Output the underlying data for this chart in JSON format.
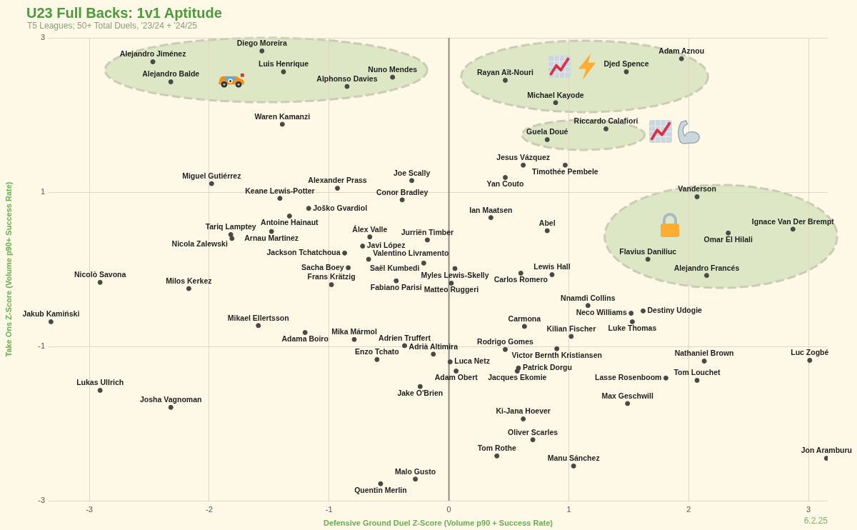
{
  "chart_data": {
    "type": "scatter",
    "title": "U23 Full Backs: 1v1 Aptitude",
    "subtitle": "T5 Leagues; 50+ Total Duels, '23/24 + '24/25",
    "xlabel": "Defensive Ground Duel Z-Score (Volume p90 + Success Rate)",
    "ylabel": "Take Ons Z-Score (Volume p90+ Success Rate)",
    "annotations": [
      "6.2.25"
    ],
    "value_labels": [
      "Alejandro Jiménez",
      "Diego Moreira",
      "Luis Henrique",
      "Alejandro Balde",
      "Nuno Mendes",
      "Alphonso Davies",
      "Adam Aznou",
      "Djed Spence",
      "Rayan Aït-Nouri",
      "Michael Kayode",
      "Waren Kamanzi",
      "Riccardo Calafiori",
      "Guela Doué",
      "Jesus Vázquez",
      "Timothée Pembele",
      "Yan Couto",
      "Joe Scally",
      "Miguel Gutiérrez",
      "Alexander Prass",
      "Vanderson",
      "Keane Lewis-Potter",
      "Conor Bradley",
      "Joško Gvardiol",
      "Antoine Hainaut",
      "Ian Maatsen",
      "Ignace Van Der Brempt",
      "Abel",
      "Arnau Martinez",
      "Omar El Hilali",
      "Nicola Zalewski",
      "Tariq Lamptey",
      "Álex Valle",
      "Jurriën Timber",
      "Javi López",
      "Jackson Tchatchoua",
      "Valentino Livramento",
      "Flavius Daniliuc",
      "Myles Lewis-Skelly",
      "Saël Kumbedi",
      "Sacha Boey",
      "Lewis Hall",
      "Carlos Romero",
      "Alejandro Francés",
      "Fabiano Parisi",
      "Nicolò Savona",
      "Matteo Ruggeri",
      "Frans Krätzig",
      "Milos Kerkez",
      "Nnamdi Collins",
      "Destiny Udogie",
      "Neco Williams",
      "Jakub Kamiński",
      "Luke Thomas",
      "Mikael Ellertsson",
      "Carmona",
      "Adama Boiro",
      "Kilian Fischer",
      "Mika Mármol",
      "Adrien Truffert",
      "Rodrigo Gomes",
      "Victor Bernth Kristiansen",
      "Adrià Altimira",
      "Enzo Tchato",
      "Luc Zogbé",
      "Nathaniel Brown",
      "Luca Netz",
      "Adam Obert",
      "Jacques Ekomie",
      "Patrick Dorgu",
      "Tom Louchet",
      "Lasse Rosenboom",
      "Jake O'Brien",
      "Lukas Ullrich",
      "Max Geschwill",
      "Josha Vagnoman",
      "Ki-Jana Hoever",
      "Oliver Scarles",
      "Tom Rothe",
      "Jon Aramburu",
      "Manu Sánchez",
      "Malo Gusto",
      "Quentin Merlin"
    ],
    "x": [
      -2.47,
      -1.56,
      -1.38,
      -2.32,
      -0.47,
      -0.85,
      1.94,
      1.48,
      0.47,
      0.89,
      -1.39,
      1.31,
      0.82,
      0.62,
      0.97,
      0.47,
      -0.31,
      -1.98,
      -0.93,
      2.07,
      -1.41,
      -0.39,
      -1.17,
      -1.33,
      0.35,
      2.87,
      0.82,
      -1.48,
      2.33,
      -1.81,
      -1.82,
      -0.66,
      -0.18,
      -0.72,
      -0.87,
      -0.67,
      1.66,
      0.05,
      -0.21,
      -0.84,
      0.86,
      0.6,
      2.15,
      -0.44,
      -2.91,
      0.02,
      -0.98,
      -2.17,
      1.16,
      1.62,
      1.52,
      -3.32,
      1.53,
      -1.59,
      0.63,
      -1.2,
      1.02,
      -0.79,
      -0.37,
      0.47,
      0.9,
      -0.13,
      -0.6,
      3.01,
      2.13,
      0.01,
      0.06,
      0.57,
      0.58,
      2.07,
      1.81,
      -0.24,
      -2.91,
      1.49,
      -2.32,
      0.62,
      0.7,
      0.4,
      3.15,
      1.04,
      -0.28,
      -0.57
    ],
    "values": [
      2.69,
      2.83,
      2.56,
      2.43,
      2.49,
      2.37,
      2.73,
      2.56,
      2.45,
      2.16,
      1.88,
      1.82,
      1.68,
      1.35,
      1.35,
      1.19,
      1.15,
      1.11,
      1.05,
      0.94,
      0.92,
      0.9,
      0.79,
      0.69,
      0.67,
      0.52,
      0.5,
      0.49,
      0.47,
      0.4,
      0.45,
      0.42,
      0.38,
      0.3,
      0.21,
      0.13,
      0.13,
      0.01,
      0.08,
      0.02,
      -0.07,
      -0.05,
      -0.08,
      -0.15,
      -0.17,
      -0.18,
      -0.2,
      -0.25,
      -0.47,
      -0.54,
      -0.57,
      -0.68,
      -0.68,
      -0.73,
      -0.74,
      -0.82,
      -0.87,
      -0.91,
      -0.99,
      -1.04,
      -1.03,
      -1.1,
      -1.17,
      -1.18,
      -1.19,
      -1.2,
      -1.32,
      -1.32,
      -1.28,
      -1.44,
      -1.41,
      -1.52,
      -1.57,
      -1.74,
      -1.79,
      -1.94,
      -2.21,
      -2.42,
      -2.45,
      -2.55,
      -2.72,
      -2.78
    ],
    "color": "#4a4a44",
    "marker": "circle",
    "xlim": [
      -3.34,
      3.16
    ],
    "ylim": [
      -3,
      3
    ],
    "xticks": [
      -3,
      -2,
      -1,
      0,
      1,
      2,
      3
    ],
    "yticks": [
      -3,
      -1,
      1,
      3
    ],
    "grid": true,
    "ref_lines": [
      {
        "axis": "x",
        "value": 0,
        "color": "#8e8d84"
      }
    ]
  }
}
